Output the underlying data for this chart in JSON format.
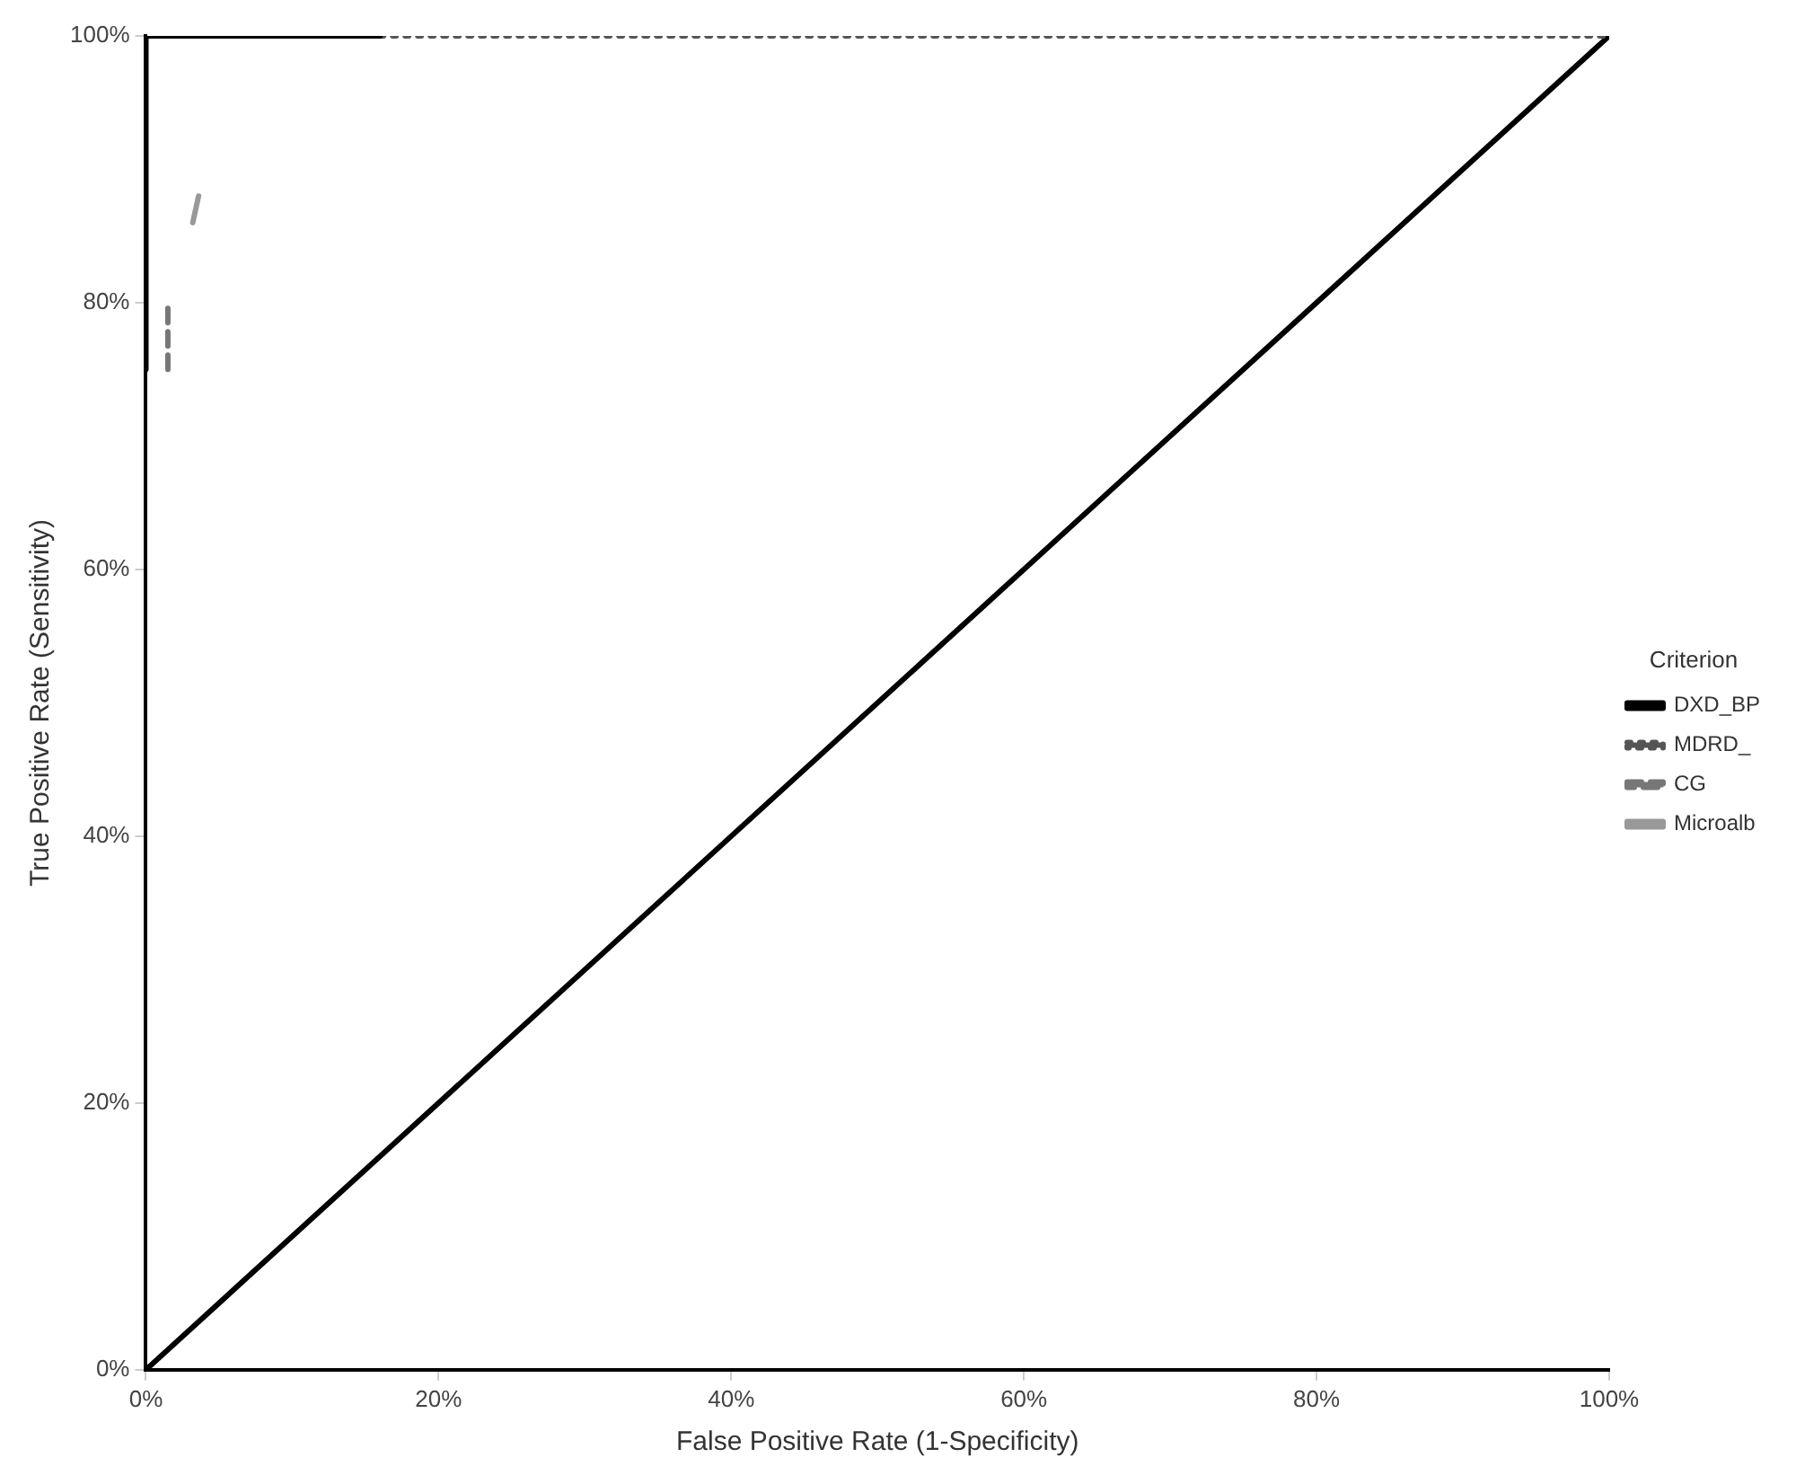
{
  "chart_data": {
    "type": "line",
    "xlabel": "False Positive Rate (1-Specificity)",
    "ylabel": "True Positive Rate (Sensitivity)",
    "legend_title": "Criterion",
    "legend": "right",
    "grid": false,
    "marker": "none",
    "xlim": [
      0,
      100
    ],
    "ylim": [
      0,
      100
    ],
    "xticks": [
      {
        "value": 0,
        "label": "0%"
      },
      {
        "value": 20,
        "label": "20%"
      },
      {
        "value": 40,
        "label": "40%"
      },
      {
        "value": 60,
        "label": "60%"
      },
      {
        "value": 80,
        "label": "80%"
      },
      {
        "value": 100,
        "label": "100%"
      }
    ],
    "yticks": [
      {
        "value": 0,
        "label": "0%"
      },
      {
        "value": 20,
        "label": "20%"
      },
      {
        "value": 40,
        "label": "40%"
      },
      {
        "value": 60,
        "label": "60%"
      },
      {
        "value": 80,
        "label": "80%"
      },
      {
        "value": 100,
        "label": "100%"
      }
    ],
    "series": [
      {
        "name": "DXD_BP",
        "color": "#000000",
        "x": [
          0,
          0,
          16
        ],
        "values": [
          75,
          100,
          100
        ],
        "line_style": "solid"
      },
      {
        "name": "MDRD_",
        "color": "#555555",
        "x": [
          16,
          100
        ],
        "values": [
          100,
          100
        ],
        "line_style": "dotted"
      },
      {
        "name": "CG",
        "color": "#777777",
        "x": [
          1.5,
          1.5
        ],
        "values": [
          75,
          80
        ],
        "line_style": "dashed"
      },
      {
        "name": "Microalb",
        "color": "#999999",
        "x": [
          3.2,
          3.6
        ],
        "values": [
          86,
          88
        ],
        "line_style": "solid"
      },
      {
        "color": "#000000",
        "x": [
          0,
          100
        ],
        "values": [
          0,
          100
        ],
        "line_style": "solid"
      }
    ]
  }
}
